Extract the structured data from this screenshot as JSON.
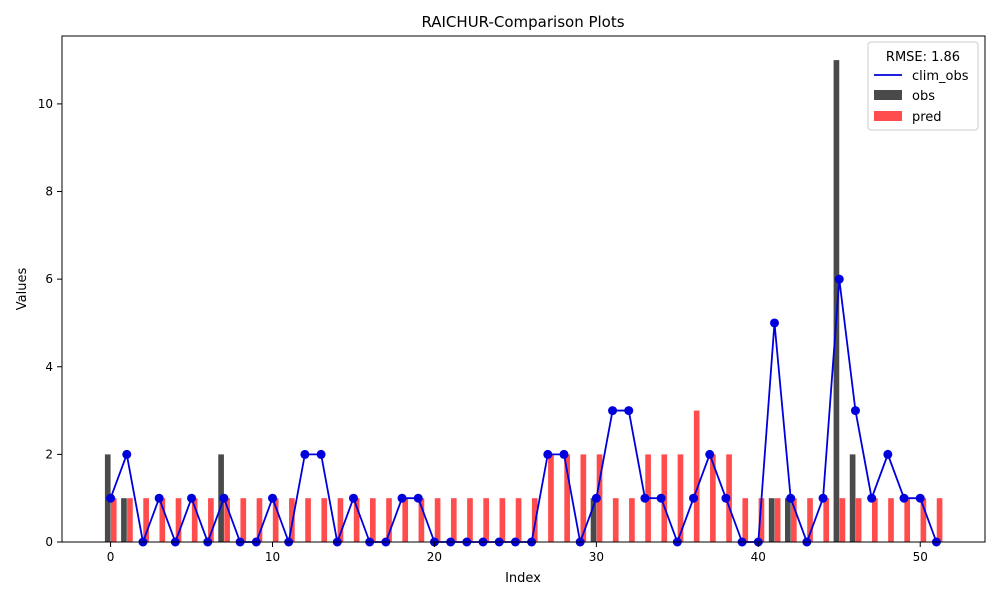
{
  "chart_data": {
    "type": "bar",
    "title": "RAICHUR-Comparison Plots",
    "xlabel": "Index",
    "ylabel": "Values",
    "xlim": [
      -3,
      54
    ],
    "ylim": [
      0,
      11.55
    ],
    "xticks": [
      0,
      10,
      20,
      30,
      40,
      50
    ],
    "yticks": [
      0,
      2,
      4,
      6,
      8,
      10
    ],
    "grid": false,
    "legend": {
      "title": "RMSE: 1.86",
      "placement": "top-right",
      "entries": [
        {
          "label": "clim_obs",
          "kind": "line",
          "color": "#0000dd"
        },
        {
          "label": "obs",
          "kind": "bar",
          "color": "#4a4a4a"
        },
        {
          "label": "pred",
          "kind": "bar",
          "color": "#ff4d4d"
        }
      ]
    },
    "x": [
      0,
      1,
      2,
      3,
      4,
      5,
      6,
      7,
      8,
      9,
      10,
      11,
      12,
      13,
      14,
      15,
      16,
      17,
      18,
      19,
      20,
      21,
      22,
      23,
      24,
      25,
      26,
      27,
      28,
      29,
      30,
      31,
      32,
      33,
      34,
      35,
      36,
      37,
      38,
      39,
      40,
      41,
      42,
      43,
      44,
      45,
      46,
      47,
      48,
      49,
      50,
      51
    ],
    "series": [
      {
        "name": "obs",
        "kind": "bar",
        "color": "#4a4a4a",
        "values": [
          2,
          1,
          0,
          0,
          0,
          0,
          0,
          2,
          0,
          0,
          0,
          0,
          0,
          0,
          0,
          0,
          0,
          0,
          0,
          0,
          0,
          0,
          0,
          0,
          0,
          0,
          0,
          0,
          0,
          0,
          1,
          0,
          0,
          0,
          0,
          0,
          0,
          0,
          0,
          0,
          0,
          1,
          1,
          0,
          0,
          11,
          2,
          0,
          0,
          0,
          0,
          0
        ]
      },
      {
        "name": "pred",
        "kind": "bar",
        "color": "#ff4d4d",
        "values": [
          1,
          1,
          1,
          1,
          1,
          1,
          1,
          1,
          1,
          1,
          1,
          1,
          1,
          1,
          1,
          1,
          1,
          1,
          1,
          1,
          1,
          1,
          1,
          1,
          1,
          1,
          1,
          2,
          2,
          2,
          2,
          1,
          1,
          2,
          2,
          2,
          3,
          2,
          2,
          1,
          1,
          1,
          1,
          1,
          1,
          1,
          1,
          1,
          1,
          1,
          1,
          1
        ]
      },
      {
        "name": "clim_obs",
        "kind": "line",
        "color": "#0000dd",
        "values": [
          1,
          2,
          0,
          1,
          0,
          1,
          0,
          1,
          0,
          0,
          1,
          0,
          2,
          2,
          0,
          1,
          0,
          0,
          1,
          1,
          0,
          0,
          0,
          0,
          0,
          0,
          0,
          2,
          2,
          0,
          1,
          3,
          3,
          1,
          1,
          0,
          1,
          2,
          1,
          0,
          0,
          5,
          1,
          0,
          1,
          6,
          3,
          1,
          2,
          1,
          1,
          0
        ]
      }
    ]
  }
}
